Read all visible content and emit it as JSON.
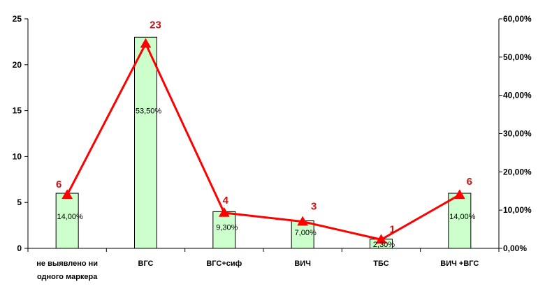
{
  "chart_data": {
    "type": "bar",
    "categories": [
      [
        "не выявлено ни",
        "одного маркера"
      ],
      [
        "ВГС"
      ],
      [
        "ВГС+сиф"
      ],
      [
        "ВИЧ"
      ],
      [
        "ТБС"
      ],
      [
        "ВИЧ +ВГС"
      ]
    ],
    "series": [
      {
        "kind": "bar",
        "axis": "left",
        "values": [
          6,
          23,
          4,
          3,
          1,
          6
        ],
        "data_labels": [
          "14,00%",
          "53,50%",
          "9,30%",
          "7,00%",
          "2,30%",
          "14,00%"
        ],
        "color": "#ccffcc"
      },
      {
        "kind": "line",
        "axis": "right",
        "values": [
          14.0,
          53.5,
          9.3,
          7.0,
          2.3,
          14.0
        ],
        "data_labels": [
          "6",
          "23",
          "4",
          "3",
          "1",
          "6"
        ],
        "color": "#ff0000",
        "label_color": "#cc1111",
        "marker": "triangle"
      }
    ],
    "y_left": {
      "ylim": [
        0,
        25
      ],
      "ticks": [
        0,
        5,
        10,
        15,
        20,
        25
      ],
      "tick_labels": [
        "0",
        "5",
        "10",
        "15",
        "20",
        "25"
      ]
    },
    "y_right": {
      "ylim": [
        0,
        60
      ],
      "ticks": [
        0,
        10,
        20,
        30,
        40,
        50,
        60
      ],
      "tick_labels": [
        "0,00%",
        "10,00%",
        "20,00%",
        "30,00%",
        "40,00%",
        "50,00%",
        "60,00%"
      ]
    },
    "grid": false,
    "legend": "none"
  }
}
